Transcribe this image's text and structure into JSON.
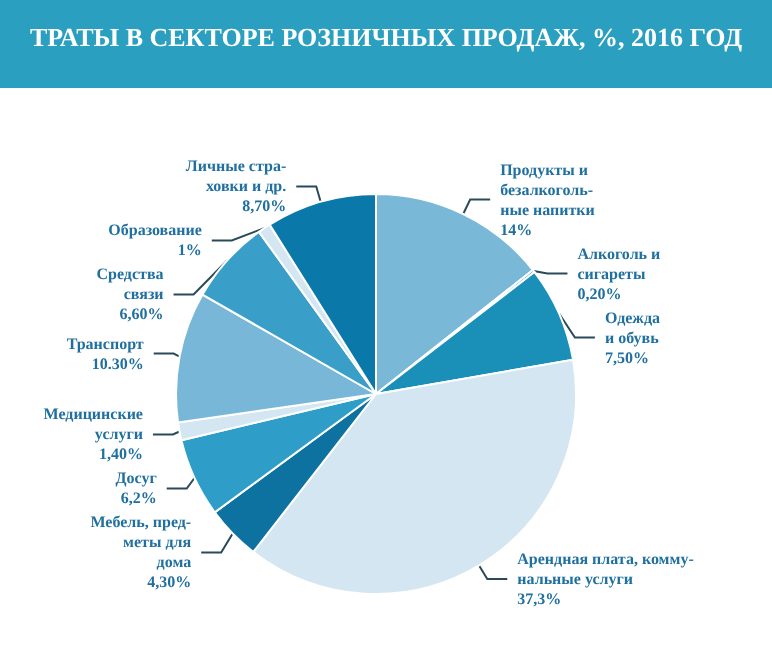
{
  "chart_data": {
    "type": "pie",
    "title": "ТРАТЫ В СЕКТОРЕ РОЗНИЧНЫХ ПРОДАЖ, %, 2016 ГОД",
    "categories": [
      "Продукты и\nбезалкоголь-\nные напитки",
      "Алкоголь и\nсигареты",
      "Одежда\nи обувь",
      "Арендная плата, комму-\nнальные услуги",
      "Мебель, пред-\nметы для\nдома",
      "Досуг",
      "Медицинские\nуслуги",
      "Транспорт",
      "Средства\nсвязи",
      "Образование",
      "Личные стра-\nховки и др."
    ],
    "values": [
      14,
      0.2,
      7.5,
      37.3,
      4.3,
      6.2,
      1.4,
      10.3,
      6.6,
      1,
      8.7
    ],
    "value_labels": [
      "14%",
      "0,20%",
      "7,50%",
      "37,3%",
      "4,30%",
      "6,2%",
      "1,40%",
      "10.30%",
      "6,60%",
      "1%",
      "8,70%"
    ],
    "colors": [
      "#7ab8d8",
      "#2a8fbf",
      "#1a8fb8",
      "#d4e6f1",
      "#0e72a0",
      "#2e9ec9",
      "#d4e6f1",
      "#79b7d9",
      "#3a9fc8",
      "#d4e6f1",
      "#0a78a8"
    ]
  }
}
